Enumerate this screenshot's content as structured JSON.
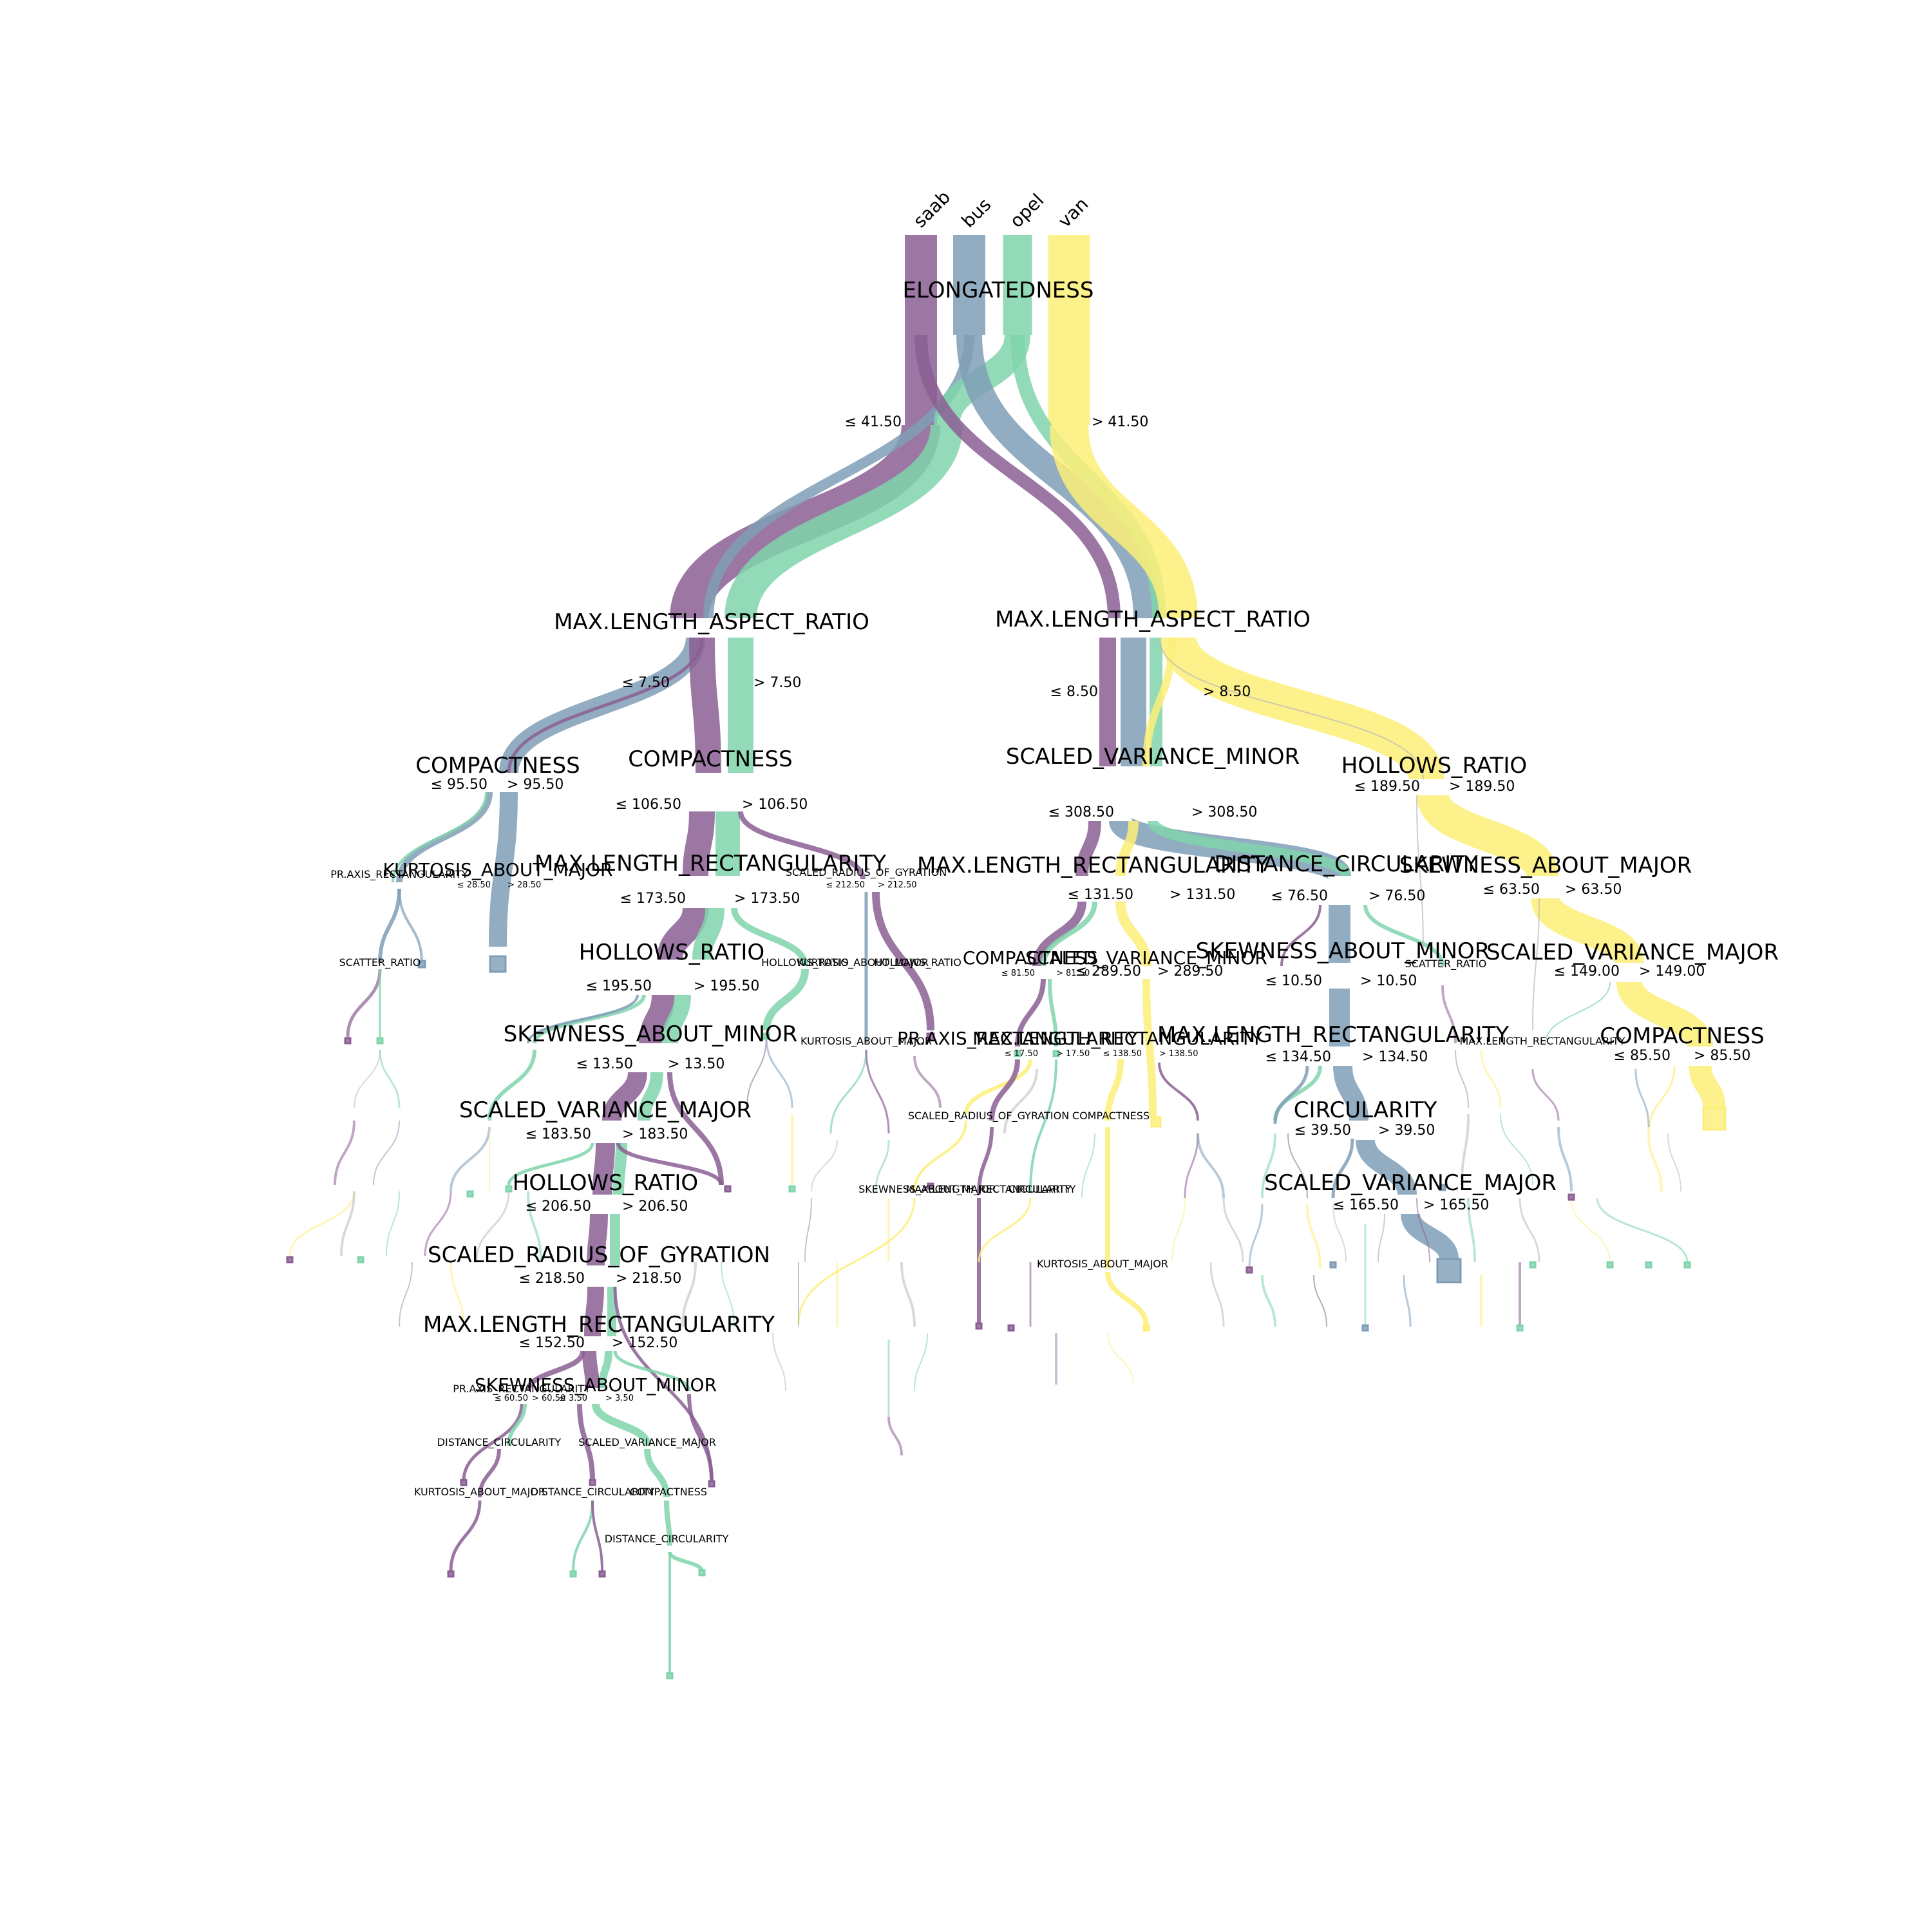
{
  "colors": {
    "saab": "#8b5f94",
    "bus": "#7f9db6",
    "opel": "#80d4ab",
    "van": "#fdee78",
    "fine": "#b9b9b9"
  },
  "classes": [
    "saab",
    "bus",
    "opel",
    "van"
  ],
  "nodes": {
    "root": {
      "feature": "ELONGATEDNESS",
      "left": "≤ 41.50",
      "right": "> 41.50"
    },
    "n_l": {
      "feature": "MAX.LENGTH_ASPECT_RATIO",
      "left": "≤ 7.50",
      "right": "> 7.50"
    },
    "n_r": {
      "feature": "MAX.LENGTH_ASPECT_RATIO",
      "left": "≤ 8.50",
      "right": "> 8.50"
    },
    "n_ll": {
      "feature": "COMPACTNESS",
      "left": "≤ 95.50",
      "right": "> 95.50"
    },
    "n_lr": {
      "feature": "COMPACTNESS",
      "left": "≤ 106.50",
      "right": "> 106.50"
    },
    "n_rl": {
      "feature": "SCALED_VARIANCE_MINOR",
      "left": "≤ 308.50",
      "right": "> 308.50"
    },
    "n_rr": {
      "feature": "HOLLOWS_RATIO",
      "left": "≤ 189.50",
      "right": "> 189.50"
    },
    "n_lll_b": {
      "feature": "KURTOSIS_ABOUT_MAJOR",
      "left": "≤ 28.50",
      "right": "> 28.50"
    },
    "n_lll_a": {
      "feature": "PR.AXIS_RECTANGULARITY"
    },
    "n_lrl": {
      "feature": "MAX.LENGTH_RECTANGULARITY",
      "left": "≤ 173.50",
      "right": "> 173.50"
    },
    "n_lrr": {
      "feature": "SCALED_RADIUS_OF_GYRATION",
      "left": "≤ 212.50",
      "right": "> 212.50"
    },
    "n_rll": {
      "feature": "MAX.LENGTH_RECTANGULARITY",
      "left": "≤ 131.50",
      "right": "> 131.50"
    },
    "n_rlr": {
      "feature": "DISTANCE_CIRCULARITY",
      "left": "≤ 76.50",
      "right": "> 76.50"
    },
    "n_rrr": {
      "feature": "SKEWNESS_ABOUT_MAJOR",
      "left": "≤ 63.50",
      "right": "> 63.50"
    },
    "n_hr1": {
      "feature": "HOLLOWS_RATIO",
      "left": "≤ 195.50",
      "right": "> 195.50"
    },
    "n_comp2": {
      "feature": "COMPACTNESS",
      "left": "≤ 81.50",
      "right": "> 81.50"
    },
    "n_svm2": {
      "feature": "SCALED_VARIANCE_MINOR",
      "left": "≤ 289.50",
      "right": "> 289.50"
    },
    "n_skmin2": {
      "feature": "SKEWNESS_ABOUT_MINOR",
      "left": "≤ 10.50",
      "right": "> 10.50"
    },
    "n_svmaj2": {
      "feature": "SCALED_VARIANCE_MAJOR",
      "left": "≤ 149.00",
      "right": "> 149.00"
    },
    "n_skmin1": {
      "feature": "SKEWNESS_ABOUT_MINOR",
      "left": "≤ 13.50",
      "right": "> 13.50"
    },
    "n_praxis": {
      "feature": "PR.AXIS_RECTANGULARITY",
      "left": "≤ 17.50",
      "right": "> 17.50"
    },
    "n_mlr3": {
      "feature": "MAX.LENGTH_RECTANGULARITY",
      "left": "≤ 138.50",
      "right": "> 138.50"
    },
    "n_mlr4": {
      "feature": "MAX.LENGTH_RECTANGULARITY",
      "left": "≤ 134.50",
      "right": "> 134.50"
    },
    "n_comp3": {
      "feature": "COMPACTNESS",
      "left": "≤ 85.50",
      "right": "> 85.50"
    },
    "n_svmaj1": {
      "feature": "SCALED_VARIANCE_MAJOR",
      "left": "≤ 183.50",
      "right": "> 183.50"
    },
    "n_circ": {
      "feature": "CIRCULARITY",
      "left": "≤ 39.50",
      "right": "> 39.50"
    },
    "n_hr2": {
      "feature": "HOLLOWS_RATIO",
      "left": "≤ 206.50",
      "right": "> 206.50"
    },
    "n_svmaj3": {
      "feature": "SCALED_VARIANCE_MAJOR",
      "left": "≤ 165.50",
      "right": "> 165.50"
    },
    "n_srg": {
      "feature": "SCALED_RADIUS_OF_GYRATION",
      "left": "≤ 218.50",
      "right": "> 218.50"
    },
    "n_mlr5": {
      "feature": "MAX.LENGTH_RECTANGULARITY",
      "left": "≤ 152.50",
      "right": "> 152.50"
    },
    "n_praxis2": {
      "feature": "PR.AXIS_RECTANGULARITY",
      "left": "≤ 60.50",
      "right": "> 60.50"
    },
    "n_skmin3": {
      "feature": "SKEWNESS_ABOUT_MINOR",
      "left": "≤ 3.50",
      "right": "> 3.50"
    },
    "n_dc2": {
      "feature": "DISTANCE_CIRCULARITY"
    },
    "n_svmaj4": {
      "feature": "SCALED_VARIANCE_MAJOR"
    },
    "n_kam2": {
      "feature": "KURTOSIS_ABOUT_MAJOR"
    },
    "n_dc3": {
      "feature": "DISTANCE_CIRCULARITY"
    },
    "n_comp4": {
      "feature": "COMPACTNESS"
    },
    "n_dc4": {
      "feature": "DISTANCE_CIRCULARITY"
    },
    "n_hr3": {
      "feature": "HOLLOWS_RATIO"
    },
    "n_kam3": {
      "feature": "KURTOSIS_ABOUT_MAJOR"
    },
    "n_hr4": {
      "feature": "HOLLOWS_RATIO"
    },
    "n_srg2": {
      "feature": "SCALED_RADIUS_OF_GYRATION"
    },
    "n_comp5": {
      "feature": "COMPACTNESS"
    },
    "n_circ2": {
      "feature": "CIRCULARITY"
    },
    "n_mlr6": {
      "feature": "MAX.LENGTH_RECTANGULARITY"
    },
    "n_skmaj2": {
      "feature": "SKEWNESS_ABOUT_MAJOR"
    },
    "n_kam4": {
      "feature": "KURTOSIS_ABOUT_MAJOR"
    },
    "n_mlr7": {
      "feature": "MAX.LENGTH_RECTANGULARITY"
    },
    "n_scatter": {
      "feature": "SCATTER_RATIO"
    },
    "n_scatter2": {
      "feature": "SCATTER_RATIO"
    },
    "n_kurtosis": {
      "feature": "KURTOSIS_ABOUT_MAJOR"
    }
  }
}
